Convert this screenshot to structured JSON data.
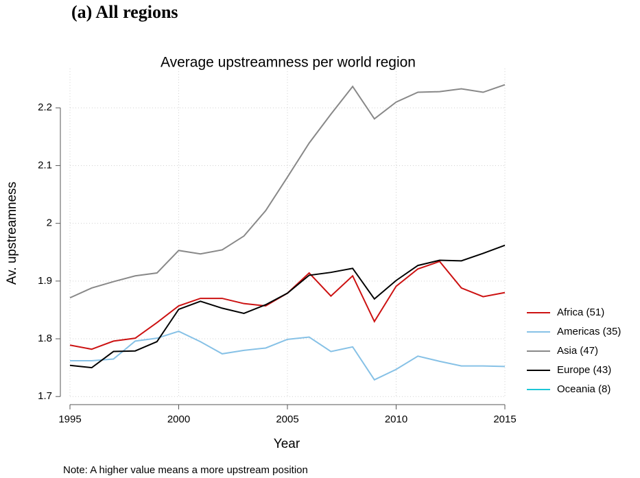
{
  "heading": "(a)  All regions",
  "chart_data": {
    "type": "line",
    "title": "Average upstreamness per world region",
    "xlabel": "Year",
    "ylabel": "Av. upstreamness",
    "note": "Note: A higher value means a more upstream position",
    "x": [
      1995,
      1996,
      1997,
      1998,
      1999,
      2000,
      2001,
      2002,
      2003,
      2004,
      2005,
      2006,
      2007,
      2008,
      2009,
      2010,
      2011,
      2012,
      2013,
      2014,
      2015
    ],
    "series": [
      {
        "name": "Africa (51)",
        "color": "#cc1111",
        "values": [
          1.789,
          1.782,
          1.796,
          1.801,
          1.828,
          1.857,
          1.87,
          1.87,
          1.861,
          1.857,
          1.879,
          1.914,
          1.874,
          1.909,
          1.83,
          1.891,
          1.921,
          1.934,
          1.888,
          1.873,
          1.88
        ]
      },
      {
        "name": "Americas (35)",
        "color": "#86c1e6",
        "values": [
          1.762,
          1.762,
          1.765,
          1.796,
          1.801,
          1.813,
          1.795,
          1.774,
          1.78,
          1.784,
          1.799,
          1.803,
          1.778,
          1.786,
          1.729,
          1.747,
          1.77,
          1.761,
          1.753,
          1.753,
          1.752
        ]
      },
      {
        "name": "Asia (47)",
        "color": "#888888",
        "values": [
          1.871,
          1.888,
          1.899,
          1.909,
          1.914,
          1.953,
          1.947,
          1.954,
          1.978,
          2.022,
          2.08,
          2.139,
          2.189,
          2.237,
          2.181,
          2.21,
          2.227,
          2.228,
          2.233,
          2.227,
          2.24
        ]
      },
      {
        "name": "Europe (43)",
        "color": "#000000",
        "values": [
          1.754,
          1.75,
          1.778,
          1.779,
          1.795,
          1.851,
          1.865,
          1.853,
          1.844,
          1.859,
          1.879,
          1.91,
          1.915,
          1.922,
          1.869,
          1.901,
          1.927,
          1.936,
          1.935,
          1.948,
          1.962
        ]
      },
      {
        "name": "Oceania (8)",
        "color": "#1cc6d6",
        "values": [
          null,
          null,
          null,
          null,
          null,
          null,
          null,
          null,
          null,
          null,
          null,
          null,
          null,
          null,
          null,
          null,
          null,
          null,
          null,
          null,
          null
        ]
      }
    ],
    "xlim": [
      1995,
      2015
    ],
    "xticks": [
      1995,
      2000,
      2005,
      2010,
      2015
    ],
    "ylim": [
      1.686,
      2.268
    ],
    "yticks": [
      1.7,
      1.8,
      1.9,
      2,
      2.1,
      2.2
    ],
    "grid": true,
    "legend": "right"
  }
}
